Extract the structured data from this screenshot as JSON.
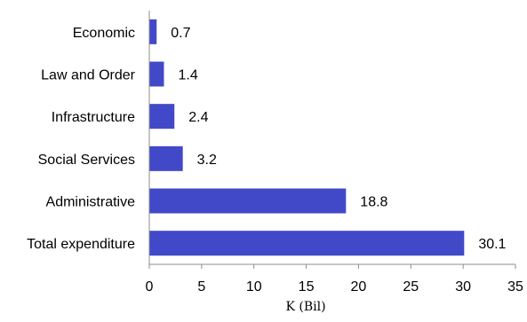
{
  "chart_data": {
    "type": "bar",
    "orientation": "horizontal",
    "categories": [
      "Economic",
      "Law and Order",
      "Infrastructure",
      "Social Services",
      "Administrative",
      "Total expenditure"
    ],
    "values": [
      0.7,
      1.4,
      2.4,
      3.2,
      18.8,
      30.1
    ],
    "data_labels": [
      "0.7",
      "1.4",
      "2.4",
      "3.2",
      "18.8",
      "30.1"
    ],
    "xlabel": "K (Bil)",
    "xlim": [
      0,
      35
    ],
    "xticks": [
      0,
      5,
      10,
      15,
      20,
      25,
      30,
      35
    ],
    "xtick_labels": [
      "0",
      "5",
      "10",
      "15",
      "20",
      "25",
      "30",
      "35"
    ],
    "grid": false,
    "bar_color": "#4149c8"
  }
}
